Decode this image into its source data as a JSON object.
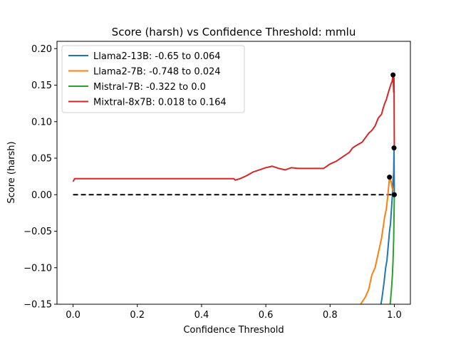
{
  "chart_data": {
    "type": "line",
    "title": "Score (harsh) vs Confidence Threshold: mmlu",
    "xlabel": "Confidence Threshold",
    "ylabel": "Score (harsh)",
    "xlim": [
      -0.05,
      1.05
    ],
    "ylim": [
      -0.15,
      0.21
    ],
    "xticks": [
      0.0,
      0.2,
      0.4,
      0.6,
      0.8,
      1.0
    ],
    "xtick_labels": [
      "0.0",
      "0.2",
      "0.4",
      "0.6",
      "0.8",
      "1.0"
    ],
    "yticks": [
      -0.15,
      -0.1,
      -0.05,
      0.0,
      0.05,
      0.1,
      0.15,
      0.2
    ],
    "ytick_labels": [
      "−0.15",
      "−0.10",
      "−0.05",
      "0.00",
      "0.05",
      "0.10",
      "0.15",
      "0.20"
    ],
    "legend_position": "top-left",
    "grid": false,
    "reference_line": {
      "y": 0.0,
      "x_range": [
        0.0,
        1.0
      ],
      "style": "dashed",
      "color": "#000000"
    },
    "series": [
      {
        "name": "Llama2-13B: -0.65 to 0.064",
        "color": "#1f77b4",
        "x": [
          0.955,
          0.962,
          0.968,
          0.973,
          0.977,
          0.981,
          0.985,
          0.988,
          0.991,
          0.994,
          0.996,
          0.998,
          0.999,
          1.0
        ],
        "y": [
          -0.16,
          -0.14,
          -0.12,
          -0.1,
          -0.09,
          -0.07,
          -0.05,
          -0.04,
          -0.02,
          0.0,
          0.02,
          0.03,
          0.064,
          0.0
        ]
      },
      {
        "name": "Llama2-7B: -0.748 to 0.024",
        "color": "#ff7f0e",
        "x": [
          0.88,
          0.895,
          0.91,
          0.92,
          0.93,
          0.94,
          0.95,
          0.96,
          0.965,
          0.97,
          0.975,
          0.98,
          0.985,
          0.99,
          0.993,
          0.996,
          1.0
        ],
        "y": [
          -0.16,
          -0.15,
          -0.14,
          -0.13,
          -0.11,
          -0.1,
          -0.08,
          -0.06,
          -0.045,
          -0.03,
          -0.02,
          0.0,
          0.024,
          0.018,
          0.01,
          0.005,
          0.0
        ]
      },
      {
        "name": "Mistral-7B: -0.322 to 0.0",
        "color": "#2ca02c",
        "x": [
          0.985,
          0.988,
          0.991,
          0.994,
          0.996,
          0.998,
          0.999,
          1.0
        ],
        "y": [
          -0.16,
          -0.145,
          -0.13,
          -0.11,
          -0.09,
          -0.06,
          -0.03,
          0.0
        ]
      },
      {
        "name": "Mixtral-8x7B: 0.018 to 0.164",
        "color": "#d62728",
        "x": [
          0.0,
          0.005,
          0.1,
          0.2,
          0.3,
          0.4,
          0.5,
          0.505,
          0.52,
          0.54,
          0.56,
          0.58,
          0.6,
          0.62,
          0.64,
          0.66,
          0.68,
          0.7,
          0.72,
          0.74,
          0.76,
          0.78,
          0.8,
          0.82,
          0.84,
          0.86,
          0.87,
          0.88,
          0.9,
          0.91,
          0.92,
          0.93,
          0.94,
          0.95,
          0.96,
          0.965,
          0.97,
          0.975,
          0.98,
          0.985,
          0.99,
          0.993,
          0.996,
          0.998,
          0.999,
          1.0
        ],
        "y": [
          0.018,
          0.022,
          0.022,
          0.022,
          0.022,
          0.022,
          0.022,
          0.02,
          0.022,
          0.026,
          0.031,
          0.034,
          0.037,
          0.039,
          0.036,
          0.034,
          0.037,
          0.036,
          0.036,
          0.036,
          0.036,
          0.036,
          0.042,
          0.046,
          0.052,
          0.058,
          0.064,
          0.067,
          0.072,
          0.078,
          0.084,
          0.088,
          0.094,
          0.105,
          0.11,
          0.118,
          0.125,
          0.13,
          0.138,
          0.145,
          0.152,
          0.155,
          0.164,
          0.14,
          0.16,
          0.064
        ]
      }
    ],
    "markers": [
      {
        "x": 0.985,
        "y": 0.024,
        "color": "#000000"
      },
      {
        "x": 0.999,
        "y": 0.064,
        "color": "#000000"
      },
      {
        "x": 0.996,
        "y": 0.164,
        "color": "#000000"
      },
      {
        "x": 1.0,
        "y": 0.0,
        "color": "#000000"
      }
    ]
  }
}
